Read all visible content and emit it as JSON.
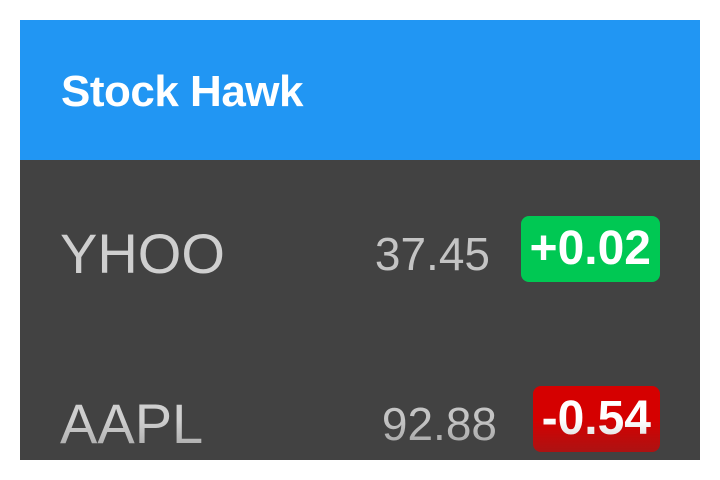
{
  "app_bar": {
    "title": "Stock Hawk",
    "color": "#2196f3"
  },
  "stocks": [
    {
      "symbol": "YHOO",
      "price": "37.45",
      "change": "+0.02",
      "direction": "up",
      "change_color": "#00c853"
    },
    {
      "symbol": "AAPL",
      "price": "92.88",
      "change": "-0.54",
      "direction": "down",
      "change_color": "#d50000"
    }
  ],
  "colors": {
    "list_background": "#424242"
  }
}
